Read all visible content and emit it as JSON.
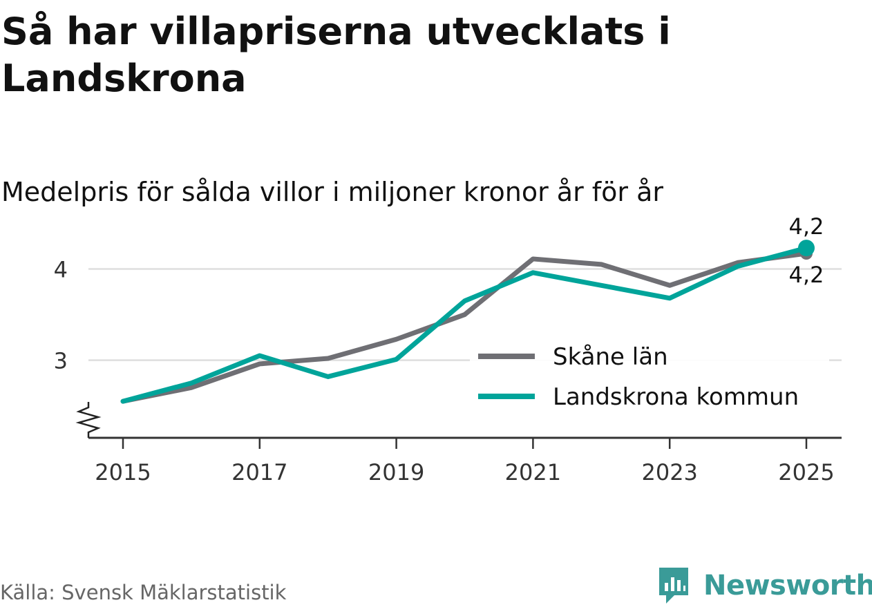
{
  "title": "Så har villapriserna utvecklats i Landskrona",
  "subtitle": "Medelpris för sålda villor i miljoner kronor år för år",
  "source": "Källa: Svensk Mäklarstatistik",
  "brand": {
    "name": "Newsworthy",
    "color": "#3a9b98"
  },
  "chart_data": {
    "type": "line",
    "title": "Så har villapriserna utvecklats i Landskrona",
    "subtitle": "Medelpris för sålda villor i miljoner kronor år för år",
    "xlabel": "",
    "ylabel": "",
    "x": [
      2015,
      2016,
      2017,
      2018,
      2019,
      2020,
      2021,
      2022,
      2023,
      2024,
      2025
    ],
    "xticks": [
      "2015",
      "2017",
      "2019",
      "2021",
      "2023",
      "2025"
    ],
    "yticks": [
      "3",
      "4"
    ],
    "ylim": [
      2.15,
      4.45
    ],
    "axis_break": true,
    "grid": true,
    "legend_position": "center-right",
    "series": [
      {
        "name": "Skåne län",
        "color": "#6f6f74",
        "values": [
          2.55,
          2.7,
          2.96,
          3.02,
          3.23,
          3.5,
          4.11,
          4.05,
          3.82,
          4.07,
          4.17
        ],
        "end_label": "4,2"
      },
      {
        "name": "Landskrona kommun",
        "color": "#00a49a",
        "values": [
          2.55,
          2.75,
          3.05,
          2.82,
          3.01,
          3.65,
          3.96,
          3.82,
          3.68,
          4.03,
          4.23
        ],
        "end_label": "4,2"
      }
    ]
  }
}
